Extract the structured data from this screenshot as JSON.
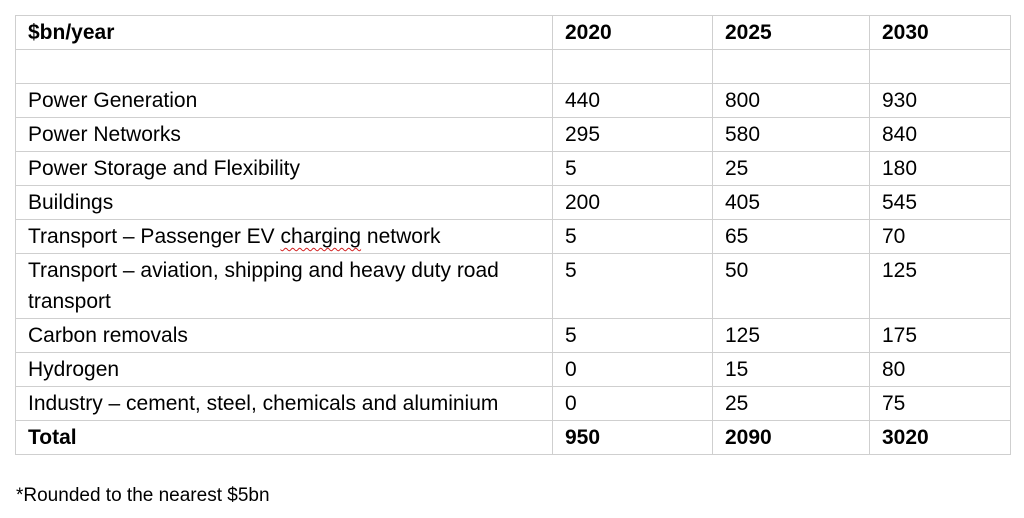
{
  "header": {
    "label": "$bn/year",
    "years": [
      "2020",
      "2025",
      "2030"
    ]
  },
  "rows": [
    {
      "label": "Power Generation",
      "values": [
        "440",
        "800",
        "930"
      ]
    },
    {
      "label": "Power Networks",
      "values": [
        "295",
        "580",
        "840"
      ]
    },
    {
      "label": "Power Storage and Flexibility",
      "values": [
        "5",
        "25",
        "180"
      ]
    },
    {
      "label": "Buildings",
      "values": [
        "200",
        "405",
        "545"
      ]
    },
    {
      "label_pre": "Transport – Passenger EV ",
      "label_flagged": "charging",
      "label_post": " network",
      "values": [
        "5",
        "65",
        "70"
      ]
    },
    {
      "label": "Transport – aviation, shipping and heavy duty road transport",
      "values": [
        "5",
        "50",
        "125"
      ]
    },
    {
      "label": "Carbon removals",
      "values": [
        "5",
        "125",
        "175"
      ]
    },
    {
      "label": "Hydrogen",
      "values": [
        "0",
        "15",
        "80"
      ]
    },
    {
      "label": "Industry – cement, steel, chemicals and aluminium",
      "values": [
        "0",
        "25",
        "75"
      ]
    }
  ],
  "total": {
    "label": "Total",
    "values": [
      "950",
      "2090",
      "3020"
    ]
  },
  "footnote": "*Rounded to the nearest $5bn",
  "colors": {
    "border": "#cfcfcf",
    "spellcheck_underline": "#d21f1f"
  }
}
